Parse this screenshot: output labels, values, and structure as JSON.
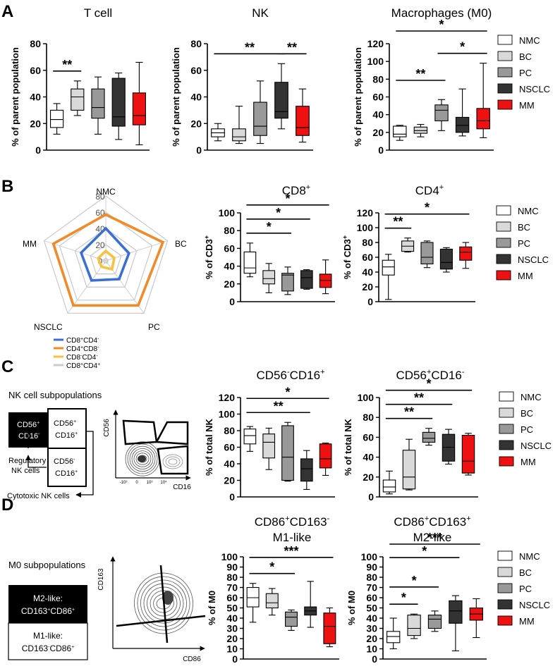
{
  "panel_letters": [
    "A",
    "B",
    "C",
    "D"
  ],
  "group_legend": [
    {
      "name": "NMC",
      "color": "#ffffff"
    },
    {
      "name": "BC",
      "color": "#d9d9d9"
    },
    {
      "name": "PC",
      "color": "#999999"
    },
    {
      "name": "NSCLC",
      "color": "#333333"
    },
    {
      "name": "MM",
      "color": "#ee1111"
    }
  ],
  "radar": {
    "axes": [
      "NMC",
      "BC",
      "PC",
      "NSCLC",
      "MM"
    ],
    "ticks": [
      "0",
      "20",
      "40",
      "60",
      "80"
    ],
    "max": 80,
    "series": [
      {
        "name": "CD8+CD4-",
        "label_main": "CD8",
        "label_sup1": "+",
        "label_mid": "CD4",
        "label_sup2": "-",
        "color": "#3b6fd1",
        "values": [
          40,
          30,
          28,
          30,
          32
        ]
      },
      {
        "name": "CD4+CD8-",
        "label_main": "CD4",
        "label_sup1": "+",
        "label_mid": "CD8",
        "label_sup2": "-",
        "color": "#f08a2a",
        "values": [
          57,
          74,
          68,
          68,
          68
        ]
      },
      {
        "name": "CD8-CD4-",
        "label_main": "CD8",
        "label_sup1": "-",
        "label_mid": "CD4",
        "label_sup2": "-",
        "color": "#f5c242",
        "values": [
          12,
          11,
          13,
          9,
          10
        ]
      },
      {
        "name": "CD8+CD4+",
        "label_main": "CD8",
        "label_sup1": "+",
        "label_mid": "CD4",
        "label_sup2": "+",
        "color": "#cccccc",
        "values": [
          3,
          3,
          3,
          3,
          3
        ]
      }
    ]
  },
  "chart_data": [
    {
      "id": "A1",
      "type": "box",
      "title": "T cell",
      "ylabel": "% of parent population",
      "ylim": [
        0,
        80
      ],
      "yticks": [
        0,
        20,
        40,
        60,
        80
      ],
      "boxes": [
        [
          12,
          17,
          23,
          30,
          35
        ],
        [
          26,
          30,
          40,
          46,
          52
        ],
        [
          12,
          24,
          32,
          46,
          55
        ],
        [
          8,
          18,
          25,
          54,
          58
        ],
        [
          4,
          19,
          26,
          43,
          66
        ]
      ],
      "sig": [
        {
          "from": 0,
          "to": 1,
          "label": "**"
        }
      ]
    },
    {
      "id": "A2",
      "type": "box",
      "title": "NK",
      "ylabel": "% of parent population",
      "ylim": [
        0,
        80
      ],
      "yticks": [
        0,
        20,
        40,
        60,
        80
      ],
      "boxes": [
        [
          7,
          10,
          13,
          16,
          20
        ],
        [
          5,
          7,
          10,
          16,
          33
        ],
        [
          5,
          11,
          18,
          36,
          52
        ],
        [
          16,
          24,
          29,
          51,
          65
        ],
        [
          6,
          11,
          17,
          33,
          46
        ]
      ],
      "sig": [
        {
          "from": 0,
          "to": 3,
          "label": "**"
        },
        {
          "from": 3,
          "to": 4,
          "label": "**"
        }
      ]
    },
    {
      "id": "A3",
      "type": "box",
      "title": "Macrophages (M0)",
      "ylabel": "% of parent population",
      "ylim": [
        0,
        120
      ],
      "yticks": [
        0,
        20,
        40,
        60,
        80,
        100,
        120
      ],
      "boxes": [
        [
          11,
          15,
          18,
          27,
          28
        ],
        [
          15,
          19,
          22,
          26,
          29
        ],
        [
          22,
          33,
          45,
          51,
          57
        ],
        [
          16,
          20,
          28,
          37,
          69
        ],
        [
          14,
          24,
          33,
          47,
          98
        ]
      ],
      "sig": [
        {
          "from": 0,
          "to": 2,
          "label": "**"
        },
        {
          "from": 2,
          "to": 4,
          "label": "*"
        },
        {
          "from": 0,
          "to": 4,
          "label": "*"
        }
      ]
    },
    {
      "id": "B1",
      "type": "box",
      "title": "CD8",
      "title_sup": "+",
      "ylabel": "% of CD3",
      "ylabel_sup": "+",
      "ylim": [
        0,
        100
      ],
      "yticks": [
        0,
        20,
        40,
        60,
        80,
        100
      ],
      "boxes": [
        [
          28,
          32,
          38,
          56,
          66
        ],
        [
          10,
          20,
          26,
          35,
          43
        ],
        [
          8,
          12,
          30,
          32,
          39
        ],
        [
          14,
          15,
          27,
          35,
          36
        ],
        [
          9,
          16,
          24,
          31,
          47
        ]
      ],
      "sig": [
        {
          "from": 0,
          "to": 2,
          "label": "*"
        },
        {
          "from": 0,
          "to": 3,
          "label": "*"
        },
        {
          "from": 0,
          "to": 4,
          "label": "*"
        }
      ]
    },
    {
      "id": "B2",
      "type": "box",
      "title": "CD4",
      "title_sup": "+",
      "ylabel": "% of CD3",
      "ylabel_sup": "+",
      "ylim": [
        0,
        120
      ],
      "yticks": [
        0,
        20,
        40,
        60,
        80,
        100,
        120
      ],
      "boxes": [
        [
          3,
          36,
          47,
          56,
          64
        ],
        [
          67,
          68,
          75,
          82,
          86
        ],
        [
          46,
          51,
          60,
          80,
          82
        ],
        [
          40,
          44,
          53,
          71,
          73
        ],
        [
          45,
          56,
          67,
          74,
          80
        ]
      ],
      "sig": [
        {
          "from": 0,
          "to": 1,
          "label": "**"
        },
        {
          "from": 0,
          "to": 4,
          "label": "*"
        }
      ]
    },
    {
      "id": "C1",
      "type": "box",
      "title": "CD56",
      "title_sup": "-",
      "title_mid": "CD16",
      "title_sup2": "+",
      "ylabel": "% of total NK",
      "ylim": [
        0,
        120
      ],
      "yticks": [
        0,
        20,
        40,
        60,
        80,
        100,
        120
      ],
      "boxes": [
        [
          55,
          64,
          74,
          82,
          85
        ],
        [
          33,
          47,
          66,
          76,
          83
        ],
        [
          19,
          20,
          48,
          86,
          90
        ],
        [
          9,
          19,
          34,
          46,
          56
        ],
        [
          26,
          35,
          46,
          64,
          65
        ]
      ],
      "sig": [
        {
          "from": 0,
          "to": 3,
          "label": "**"
        },
        {
          "from": 0,
          "to": 4,
          "label": "*"
        }
      ]
    },
    {
      "id": "C2",
      "type": "box",
      "title": "CD56",
      "title_sup": "+",
      "title_mid": "CD16",
      "title_sup2": "-",
      "ylabel": "% of total NK",
      "ylim": [
        0,
        100
      ],
      "yticks": [
        0,
        20,
        40,
        60,
        80,
        100
      ],
      "boxes": [
        [
          3,
          5,
          10,
          17,
          26
        ],
        [
          7,
          8,
          20,
          47,
          58
        ],
        [
          52,
          55,
          59,
          65,
          69
        ],
        [
          33,
          36,
          50,
          63,
          68
        ],
        [
          22,
          24,
          36,
          62,
          64
        ]
      ],
      "sig": [
        {
          "from": 0,
          "to": 2,
          "label": "**"
        },
        {
          "from": 0,
          "to": 3,
          "label": "**"
        },
        {
          "from": 0,
          "to": 4,
          "label": "*"
        }
      ]
    },
    {
      "id": "D1",
      "type": "box",
      "title": "CD86",
      "title_sup": "+",
      "title_mid": "CD163",
      "title_sup2": "-",
      "subtitle": "M1-like",
      "ylabel": "% of M0",
      "ylim": [
        0,
        100
      ],
      "yticks": [
        0,
        10,
        20,
        30,
        40,
        50,
        60,
        70,
        80,
        90,
        100
      ],
      "boxes": [
        [
          36,
          51,
          60,
          70,
          74
        ],
        [
          43,
          50,
          55,
          64,
          69
        ],
        [
          28,
          32,
          41,
          46,
          48
        ],
        [
          31,
          43,
          47,
          51,
          76
        ],
        [
          12,
          15,
          32,
          45,
          50
        ]
      ],
      "sig": [
        {
          "from": 0,
          "to": 2,
          "label": "*"
        },
        {
          "from": 0,
          "to": 4,
          "label": "***"
        }
      ]
    },
    {
      "id": "D2",
      "type": "box",
      "title": "CD86",
      "title_sup": "+",
      "title_mid": "CD163",
      "title_sup2": "+",
      "subtitle": "M2-like",
      "ylabel": "% of M0",
      "ylim": [
        0,
        100
      ],
      "yticks": [
        0,
        10,
        20,
        30,
        40,
        50,
        60,
        70,
        80,
        90,
        100
      ],
      "boxes": [
        [
          10,
          16,
          22,
          27,
          40
        ],
        [
          20,
          23,
          30,
          43,
          44
        ],
        [
          27,
          30,
          39,
          43,
          47
        ],
        [
          8,
          35,
          47,
          57,
          62
        ],
        [
          21,
          38,
          44,
          50,
          59
        ]
      ],
      "sig": [
        {
          "from": 0,
          "to": 1,
          "label": "*"
        },
        {
          "from": 0,
          "to": 2,
          "label": "*"
        },
        {
          "from": 0,
          "to": 3,
          "label": "*"
        },
        {
          "from": 0,
          "to": 4,
          "label": "***"
        }
      ]
    }
  ],
  "nk_schematic": {
    "title": "NK cell subpopulations",
    "box1_l1": "CD56",
    "box1_s1": "+",
    "box1_l2": "CD16",
    "box1_s2": "-",
    "box2_l1": "CD56",
    "box2_s1": "+",
    "box2_l2": "CD16",
    "box2_s2": "+",
    "box3_l1": "CD56",
    "box3_s1": "-",
    "box3_l2": "CD16",
    "box3_s2": "+",
    "reg_l1": "Regulatory",
    "reg_l2": "NK cells",
    "cyto": "Cytotoxic NK cells",
    "x_axis": "CD16",
    "y_axis": "CD56"
  },
  "m0_schematic": {
    "title": "M0 subpopulations",
    "m2_l1": "M2-like:",
    "m2_l2a": "CD163",
    "m2_s1": "+",
    "m2_l2b": "CD86",
    "m2_s2": "+",
    "m1_l1": "M1-like:",
    "m1_l2a": "CD163",
    "m1_s1": "-",
    "m1_l2b": "CD86",
    "m1_s2": "+",
    "x_axis": "CD86",
    "y_axis": "CD163"
  },
  "flow_tick_labels": [
    "-10³",
    "0",
    "10³",
    "10⁴",
    "10⁵"
  ]
}
